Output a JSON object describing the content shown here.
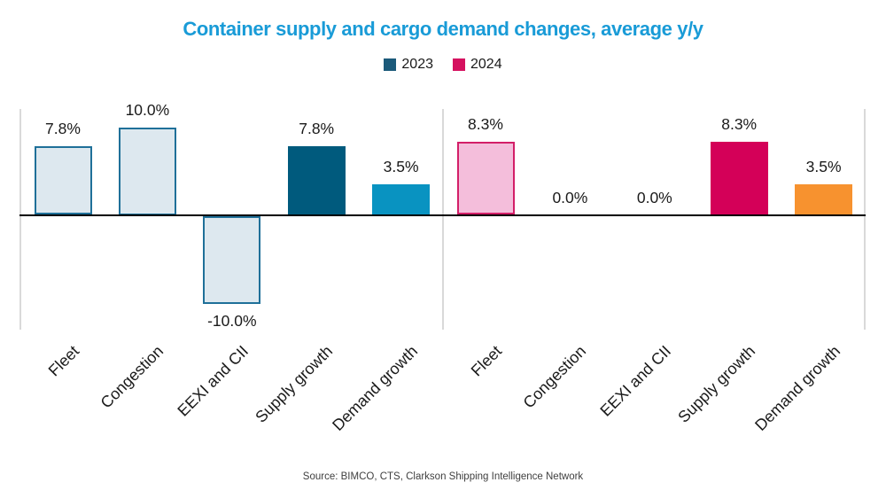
{
  "title": "Container supply and cargo demand changes, average y/y",
  "legend": {
    "items": [
      {
        "label": "2023",
        "color": "#1b5a7a"
      },
      {
        "label": "2024",
        "color": "#d5115f"
      }
    ]
  },
  "source": "Source: BIMCO, CTS, Clarkson Shipping Intelligence Network",
  "colors": {
    "title_accent": "#199bd7",
    "axis_line": "#000000",
    "guide_line": "#d9d9d9",
    "label_text": "#1a1a1a"
  },
  "chart_data": {
    "type": "bar",
    "title": "Container supply and cargo demand changes, average y/y",
    "categories": [
      "Fleet",
      "Congestion",
      "EEXI and CII",
      "Supply growth",
      "Demand growth"
    ],
    "series": [
      {
        "name": "2023",
        "values": [
          7.8,
          10.0,
          -10.0,
          7.8,
          3.5
        ],
        "labels": [
          "7.8%",
          "10.0%",
          "-10.0%",
          "7.8%",
          "3.5%"
        ],
        "bar_styles": [
          {
            "fill": "#dde8ef",
            "stroke": "#1f7099"
          },
          {
            "fill": "#dde8ef",
            "stroke": "#1f7099"
          },
          {
            "fill": "#dde8ef",
            "stroke": "#1f7099"
          },
          {
            "fill": "#005a7d",
            "stroke": "none"
          },
          {
            "fill": "#0993c1",
            "stroke": "none"
          }
        ]
      },
      {
        "name": "2024",
        "values": [
          8.3,
          0.0,
          0.0,
          8.3,
          3.5
        ],
        "labels": [
          "8.3%",
          "0.0%",
          "0.0%",
          "8.3%",
          "3.5%"
        ],
        "bar_styles": [
          {
            "fill": "#f4bedb",
            "stroke": "#d31e68"
          },
          {
            "fill": "none",
            "stroke": "none"
          },
          {
            "fill": "none",
            "stroke": "none"
          },
          {
            "fill": "#d40058",
            "stroke": "none"
          },
          {
            "fill": "#f7922f",
            "stroke": "none"
          }
        ]
      }
    ],
    "ylabel": "",
    "xlabel": "",
    "ylim": [
      -13,
      12
    ],
    "value_format": "percent",
    "grid": false,
    "legend_position": "top",
    "category_label_rotation": -45
  }
}
